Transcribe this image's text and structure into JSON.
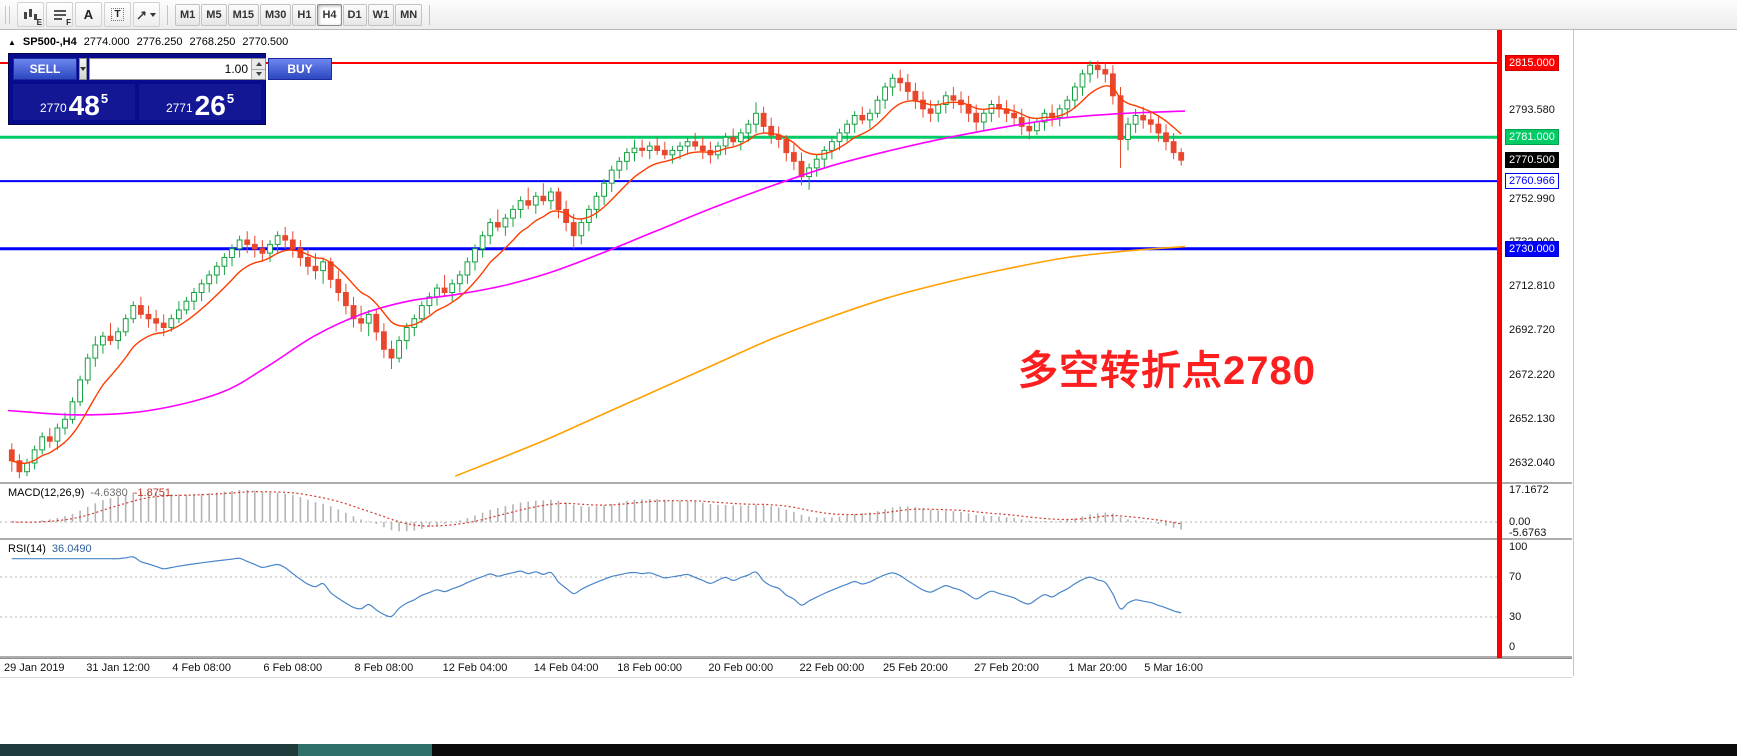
{
  "toolbar": {
    "tool_letters": {
      "e": "E",
      "f": "F",
      "a": "A",
      "t": "T"
    },
    "timeframes": [
      "M1",
      "M5",
      "M15",
      "M30",
      "H1",
      "H4",
      "D1",
      "W1",
      "MN"
    ],
    "active_timeframe": "H4"
  },
  "trade_panel": {
    "sell_label": "SELL",
    "buy_label": "BUY",
    "volume": "1.00",
    "sell_price": {
      "small": "2770",
      "big": "48",
      "sup": "5"
    },
    "buy_price": {
      "small": "2771",
      "big": "26",
      "sup": "5"
    }
  },
  "chart_data": {
    "type": "candlestick",
    "symbol": "SP500-",
    "timeframe": "H4",
    "header": {
      "symbol": "SP500-,H4",
      "open": "2774.000",
      "high": "2776.250",
      "low": "2768.250",
      "close": "2770.500"
    },
    "colors": {
      "bull": "#15a241",
      "bear": "#e8472e"
    },
    "y_range": {
      "max": 2830.1,
      "min": 2623.3
    },
    "hlines": [
      {
        "price": 2815.0,
        "color": "#ff0000",
        "width": 2
      },
      {
        "price": 2781.0,
        "color": "#00cc66",
        "width": 3
      },
      {
        "price": 2760.966,
        "color": "#0000ff",
        "width": 2
      },
      {
        "price": 2730.0,
        "color": "#0000ff",
        "width": 3
      }
    ],
    "price_axis": {
      "labels": [
        {
          "text": "2793.580",
          "price": 2793.58
        },
        {
          "text": "2752.990",
          "price": 2752.99
        },
        {
          "text": "2732.900",
          "price": 2732.9
        },
        {
          "text": "2712.810",
          "price": 2712.81
        },
        {
          "text": "2692.720",
          "price": 2692.72
        },
        {
          "text": "2672.220",
          "price": 2672.22
        },
        {
          "text": "2652.130",
          "price": 2652.13
        },
        {
          "text": "2632.040",
          "price": 2632.04
        }
      ],
      "tags": [
        {
          "text": "2815.000",
          "price": 2815.0,
          "bg": "#ff0000",
          "fg": "#ffffff",
          "border": "#cc0000"
        },
        {
          "text": "2781.000",
          "price": 2781.0,
          "bg": "#00cc66",
          "fg": "#ffffff",
          "border": "#00a050"
        },
        {
          "text": "2770.500",
          "price": 2770.5,
          "bg": "#000000",
          "fg": "#ffffff",
          "border": "#000000"
        },
        {
          "text": "2760.966",
          "price": 2760.966,
          "bg": "#ffffff",
          "fg": "#0000ff",
          "border": "#0000ff"
        },
        {
          "text": "2730.000",
          "price": 2730.0,
          "bg": "#0000ff",
          "fg": "#ffffff",
          "border": "#0000cc"
        }
      ]
    },
    "candles": [
      [
        2638,
        2641,
        2628,
        2633
      ],
      [
        2633,
        2636,
        2625,
        2628
      ],
      [
        2628,
        2634,
        2626,
        2632
      ],
      [
        2632,
        2640,
        2629,
        2638
      ],
      [
        2638,
        2646,
        2636,
        2644
      ],
      [
        2644,
        2648,
        2639,
        2642
      ],
      [
        2642,
        2650,
        2638,
        2648
      ],
      [
        2648,
        2655,
        2645,
        2652
      ],
      [
        2652,
        2662,
        2650,
        2660
      ],
      [
        2660,
        2672,
        2658,
        2670
      ],
      [
        2670,
        2682,
        2668,
        2680
      ],
      [
        2680,
        2690,
        2676,
        2686
      ],
      [
        2686,
        2692,
        2682,
        2690
      ],
      [
        2690,
        2696,
        2686,
        2688
      ],
      [
        2688,
        2694,
        2684,
        2692
      ],
      [
        2692,
        2700,
        2690,
        2698
      ],
      [
        2698,
        2706,
        2696,
        2704
      ],
      [
        2704,
        2708,
        2698,
        2700
      ],
      [
        2700,
        2704,
        2694,
        2698
      ],
      [
        2698,
        2702,
        2692,
        2696
      ],
      [
        2696,
        2700,
        2690,
        2694
      ],
      [
        2694,
        2700,
        2692,
        2698
      ],
      [
        2698,
        2706,
        2696,
        2702
      ],
      [
        2702,
        2708,
        2700,
        2706
      ],
      [
        2706,
        2712,
        2702,
        2710
      ],
      [
        2710,
        2716,
        2706,
        2714
      ],
      [
        2714,
        2720,
        2710,
        2718
      ],
      [
        2718,
        2724,
        2714,
        2722
      ],
      [
        2722,
        2728,
        2718,
        2726
      ],
      [
        2726,
        2732,
        2722,
        2730
      ],
      [
        2730,
        2736,
        2726,
        2734
      ],
      [
        2734,
        2738,
        2728,
        2732
      ],
      [
        2732,
        2736,
        2726,
        2730
      ],
      [
        2730,
        2734,
        2724,
        2728
      ],
      [
        2728,
        2734,
        2724,
        2732
      ],
      [
        2732,
        2738,
        2728,
        2736
      ],
      [
        2736,
        2740,
        2730,
        2734
      ],
      [
        2734,
        2738,
        2726,
        2730
      ],
      [
        2730,
        2734,
        2722,
        2726
      ],
      [
        2726,
        2730,
        2718,
        2722
      ],
      [
        2722,
        2728,
        2716,
        2720
      ],
      [
        2720,
        2726,
        2714,
        2724
      ],
      [
        2724,
        2726,
        2712,
        2716
      ],
      [
        2716,
        2720,
        2706,
        2710
      ],
      [
        2710,
        2714,
        2700,
        2704
      ],
      [
        2704,
        2708,
        2694,
        2698
      ],
      [
        2698,
        2704,
        2692,
        2696
      ],
      [
        2696,
        2702,
        2690,
        2700
      ],
      [
        2700,
        2702,
        2688,
        2692
      ],
      [
        2692,
        2696,
        2680,
        2684
      ],
      [
        2684,
        2688,
        2675,
        2680
      ],
      [
        2680,
        2690,
        2678,
        2688
      ],
      [
        2688,
        2696,
        2684,
        2694
      ],
      [
        2694,
        2700,
        2690,
        2698
      ],
      [
        2698,
        2706,
        2696,
        2704
      ],
      [
        2704,
        2710,
        2700,
        2708
      ],
      [
        2708,
        2714,
        2704,
        2712
      ],
      [
        2712,
        2718,
        2708,
        2710
      ],
      [
        2710,
        2716,
        2706,
        2714
      ],
      [
        2714,
        2720,
        2710,
        2718
      ],
      [
        2718,
        2726,
        2714,
        2724
      ],
      [
        2724,
        2732,
        2720,
        2730
      ],
      [
        2730,
        2738,
        2726,
        2736
      ],
      [
        2736,
        2744,
        2732,
        2742
      ],
      [
        2742,
        2748,
        2738,
        2740
      ],
      [
        2740,
        2746,
        2736,
        2744
      ],
      [
        2744,
        2750,
        2740,
        2748
      ],
      [
        2748,
        2754,
        2744,
        2752
      ],
      [
        2752,
        2758,
        2748,
        2750
      ],
      [
        2750,
        2756,
        2746,
        2754
      ],
      [
        2754,
        2760,
        2750,
        2752
      ],
      [
        2752,
        2758,
        2748,
        2756
      ],
      [
        2756,
        2758,
        2744,
        2748
      ],
      [
        2748,
        2752,
        2738,
        2742
      ],
      [
        2742,
        2746,
        2730,
        2736
      ],
      [
        2736,
        2744,
        2732,
        2742
      ],
      [
        2742,
        2750,
        2738,
        2748
      ],
      [
        2748,
        2756,
        2744,
        2754
      ],
      [
        2754,
        2762,
        2750,
        2760
      ],
      [
        2760,
        2768,
        2756,
        2766
      ],
      [
        2766,
        2772,
        2762,
        2770
      ],
      [
        2770,
        2776,
        2766,
        2774
      ],
      [
        2774,
        2780,
        2770,
        2776
      ],
      [
        2776,
        2780,
        2772,
        2775
      ],
      [
        2775,
        2779,
        2771,
        2777
      ],
      [
        2777,
        2781,
        2773,
        2775
      ],
      [
        2775,
        2779,
        2771,
        2773
      ],
      [
        2773,
        2777,
        2769,
        2775
      ],
      [
        2775,
        2779,
        2771,
        2777
      ],
      [
        2777,
        2781,
        2773,
        2779
      ],
      [
        2779,
        2783,
        2775,
        2777
      ],
      [
        2777,
        2781,
        2771,
        2775
      ],
      [
        2775,
        2779,
        2769,
        2773
      ],
      [
        2773,
        2779,
        2771,
        2777
      ],
      [
        2777,
        2783,
        2773,
        2781
      ],
      [
        2781,
        2785,
        2777,
        2779
      ],
      [
        2779,
        2785,
        2775,
        2783
      ],
      [
        2783,
        2789,
        2779,
        2787
      ],
      [
        2787,
        2797,
        2783,
        2792
      ],
      [
        2792,
        2795,
        2783,
        2786
      ],
      [
        2786,
        2790,
        2778,
        2782
      ],
      [
        2782,
        2786,
        2776,
        2780
      ],
      [
        2780,
        2782,
        2770,
        2774
      ],
      [
        2774,
        2778,
        2766,
        2770
      ],
      [
        2770,
        2774,
        2759,
        2763
      ],
      [
        2763,
        2769,
        2757,
        2767
      ],
      [
        2767,
        2773,
        2763,
        2771
      ],
      [
        2771,
        2777,
        2767,
        2775
      ],
      [
        2775,
        2781,
        2771,
        2779
      ],
      [
        2779,
        2785,
        2775,
        2783
      ],
      [
        2783,
        2789,
        2779,
        2787
      ],
      [
        2787,
        2793,
        2783,
        2791
      ],
      [
        2791,
        2795,
        2787,
        2789
      ],
      [
        2789,
        2794,
        2785,
        2792
      ],
      [
        2792,
        2800,
        2790,
        2798
      ],
      [
        2798,
        2806,
        2794,
        2804
      ],
      [
        2804,
        2810,
        2800,
        2808
      ],
      [
        2808,
        2812,
        2802,
        2806
      ],
      [
        2806,
        2810,
        2798,
        2802
      ],
      [
        2802,
        2806,
        2794,
        2798
      ],
      [
        2798,
        2802,
        2790,
        2794
      ],
      [
        2794,
        2798,
        2788,
        2792
      ],
      [
        2792,
        2798,
        2788,
        2796
      ],
      [
        2796,
        2802,
        2792,
        2800
      ],
      [
        2800,
        2804,
        2794,
        2798
      ],
      [
        2798,
        2802,
        2792,
        2796
      ],
      [
        2796,
        2800,
        2788,
        2792
      ],
      [
        2792,
        2796,
        2784,
        2788
      ],
      [
        2788,
        2794,
        2784,
        2792
      ],
      [
        2792,
        2798,
        2788,
        2796
      ],
      [
        2796,
        2800,
        2790,
        2794
      ],
      [
        2794,
        2798,
        2788,
        2792
      ],
      [
        2792,
        2796,
        2786,
        2790
      ],
      [
        2790,
        2794,
        2782,
        2786
      ],
      [
        2786,
        2790,
        2780,
        2784
      ],
      [
        2784,
        2790,
        2782,
        2788
      ],
      [
        2788,
        2794,
        2784,
        2792
      ],
      [
        2792,
        2796,
        2786,
        2790
      ],
      [
        2790,
        2796,
        2786,
        2794
      ],
      [
        2794,
        2800,
        2790,
        2798
      ],
      [
        2798,
        2806,
        2794,
        2804
      ],
      [
        2804,
        2812,
        2800,
        2810
      ],
      [
        2810,
        2816,
        2806,
        2814
      ],
      [
        2814,
        2816,
        2808,
        2812
      ],
      [
        2812,
        2815,
        2806,
        2810
      ],
      [
        2810,
        2814,
        2796,
        2800
      ],
      [
        2800,
        2804,
        2767,
        2780
      ],
      [
        2780,
        2790,
        2775,
        2787
      ],
      [
        2787,
        2794,
        2783,
        2791
      ],
      [
        2791,
        2795,
        2785,
        2789
      ],
      [
        2789,
        2793,
        2783,
        2787
      ],
      [
        2787,
        2791,
        2779,
        2783
      ],
      [
        2783,
        2787,
        2775,
        2779
      ],
      [
        2779,
        2783,
        2771,
        2774
      ],
      [
        2774,
        2776,
        2768,
        2770.5
      ]
    ],
    "ma_fast": {
      "period": 9,
      "color": "#ff3c00"
    },
    "ma_mid": {
      "color": "#ff00ff",
      "points": [
        [
          0,
          2656
        ],
        [
          0.06,
          2654
        ],
        [
          0.12,
          2656
        ],
        [
          0.18,
          2664
        ],
        [
          0.22,
          2676
        ],
        [
          0.26,
          2690
        ],
        [
          0.3,
          2700
        ],
        [
          0.34,
          2706
        ],
        [
          0.38,
          2709
        ],
        [
          0.42,
          2713
        ],
        [
          0.46,
          2719
        ],
        [
          0.5,
          2727
        ],
        [
          0.55,
          2738
        ],
        [
          0.6,
          2749
        ],
        [
          0.65,
          2759
        ],
        [
          0.7,
          2768
        ],
        [
          0.75,
          2775
        ],
        [
          0.8,
          2781
        ],
        [
          0.85,
          2786
        ],
        [
          0.9,
          2790
        ],
        [
          0.95,
          2792
        ],
        [
          1,
          2793
        ]
      ]
    },
    "ma_slow": {
      "color": "#ffa000",
      "points": [
        [
          0.38,
          2626
        ],
        [
          0.45,
          2641
        ],
        [
          0.5,
          2653
        ],
        [
          0.55,
          2665
        ],
        [
          0.6,
          2677
        ],
        [
          0.65,
          2689
        ],
        [
          0.7,
          2699
        ],
        [
          0.75,
          2708
        ],
        [
          0.8,
          2715
        ],
        [
          0.85,
          2721
        ],
        [
          0.9,
          2726
        ],
        [
          0.95,
          2729
        ],
        [
          1,
          2731
        ]
      ]
    },
    "x_labels": [
      {
        "text": "29 Jan 2019",
        "idx": 0
      },
      {
        "text": "31 Jan 12:00",
        "idx": 14
      },
      {
        "text": "4 Feb 08:00",
        "idx": 25
      },
      {
        "text": "6 Feb 08:00",
        "idx": 37
      },
      {
        "text": "8 Feb 08:00",
        "idx": 49
      },
      {
        "text": "12 Feb 04:00",
        "idx": 61
      },
      {
        "text": "14 Feb 04:00",
        "idx": 73
      },
      {
        "text": "18 Feb 00:00",
        "idx": 84
      },
      {
        "text": "20 Feb 00:00",
        "idx": 96
      },
      {
        "text": "22 Feb 00:00",
        "idx": 108
      },
      {
        "text": "25 Feb 20:00",
        "idx": 119
      },
      {
        "text": "27 Feb 20:00",
        "idx": 131
      },
      {
        "text": "1 Mar 20:00",
        "idx": 143
      },
      {
        "text": "5 Mar 16:00",
        "idx": 153
      }
    ],
    "indicators": {
      "macd": {
        "label": "MACD(12,26,9)",
        "value": "-4.6380",
        "signal_value": "-1.8751",
        "levels": [
          "17.1672",
          "0.00",
          "-5.6763"
        ],
        "histogram_color": "#b4b4b4",
        "signal_color": "#d23a2e"
      },
      "rsi": {
        "label": "RSI(14)",
        "value": "36.0490",
        "levels": [
          "100",
          "70",
          "30",
          "0"
        ],
        "line_color": "#4a86c8"
      }
    },
    "annotation": {
      "text": "多空转折点2780",
      "color": "#fb1f1f"
    }
  }
}
